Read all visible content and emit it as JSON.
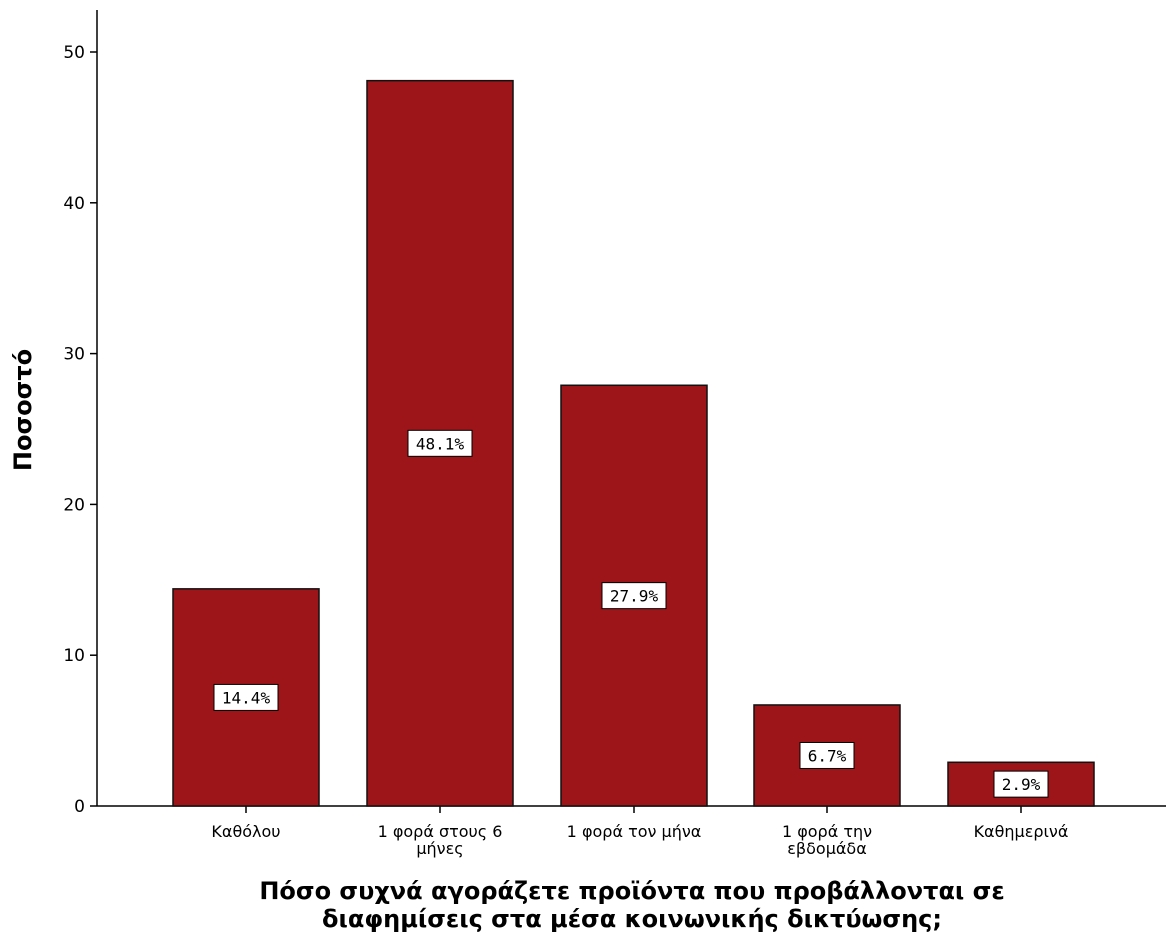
{
  "chart_data": {
    "type": "bar",
    "categories": [
      [
        "Καθόλου"
      ],
      [
        "1 φορά στους 6",
        "μήνες"
      ],
      [
        "1 φορά τον μήνα"
      ],
      [
        "1 φορά την",
        "εβδομάδα"
      ],
      [
        "Καθημερινά"
      ]
    ],
    "values": [
      14.4,
      48.1,
      27.9,
      6.7,
      2.9
    ],
    "data_labels": [
      "14.4%",
      "48.1%",
      "27.9%",
      "6.7%",
      "2.9%"
    ],
    "title": "",
    "xlabel": [
      "Πόσο συχνά αγοράζετε προϊόντα που προβάλλονται σε",
      "διαφημίσεις στα μέσα κοινωνικής δικτύωσης;"
    ],
    "ylabel": "Ποσοστό",
    "ylim": [
      0,
      52
    ],
    "yticks": [
      0,
      10,
      20,
      30,
      40,
      50
    ],
    "grid": false,
    "legend": "none",
    "bar_color": "#9e1519",
    "bar_edge_color": "#111111"
  }
}
